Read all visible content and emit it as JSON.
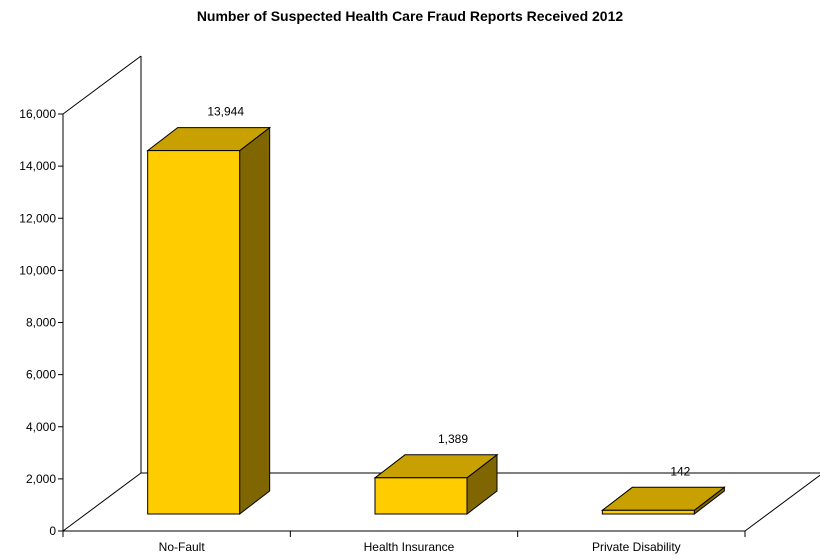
{
  "chart_data": {
    "type": "bar",
    "title": "Number of Suspected Health Care Fraud Reports Received 2012",
    "categories": [
      "No-Fault",
      "Health Insurance",
      "Private Disability"
    ],
    "values": [
      13944,
      1389,
      142
    ],
    "value_labels": [
      "13,944",
      "1,389",
      "142"
    ],
    "ylim": [
      0,
      16000
    ],
    "yticks": [
      0,
      2000,
      4000,
      6000,
      8000,
      10000,
      12000,
      14000,
      16000
    ],
    "ytick_labels": [
      "0",
      "2,000",
      "4,000",
      "6,000",
      "8,000",
      "10,000",
      "12,000",
      "14,000",
      "16,000"
    ],
    "xlabel": "",
    "ylabel": "",
    "grid": false,
    "legend": "none",
    "colors": {
      "bar_front": "#FFCC00",
      "bar_top": "#C8A000",
      "bar_side": "#7F6600",
      "axis": "#000000"
    }
  }
}
